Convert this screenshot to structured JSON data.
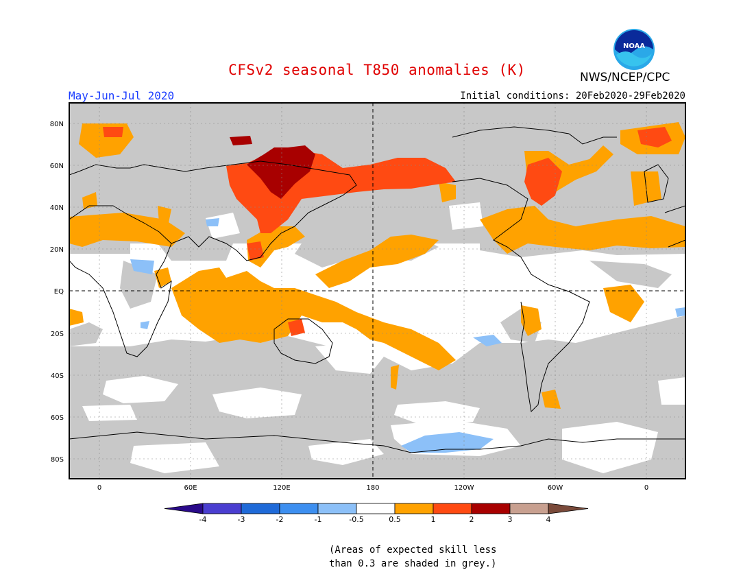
{
  "title": "CFSv2 seasonal T850 anomalies (K)",
  "season": "May-Jun-Jul 2020",
  "initial_conditions": "Initial conditions: 20Feb2020-29Feb2020",
  "agency": "NWS/NCEP/CPC",
  "logo_text": "NOAA",
  "lat_labels": [
    "80N",
    "60N",
    "40N",
    "20N",
    "EQ",
    "20S",
    "40S",
    "60S",
    "80S"
  ],
  "lon_labels": [
    "0",
    "60E",
    "120E",
    "180",
    "120W",
    "60W",
    "0"
  ],
  "colorbar": {
    "labels": [
      "-4",
      "-3",
      "-2",
      "-1",
      "-0.5",
      "0.5",
      "1",
      "2",
      "3",
      "4"
    ],
    "colors": [
      "#2a0a8a",
      "#4a3ed0",
      "#1f6ad8",
      "#3d8ff0",
      "#8cc0f8",
      "#ffffff",
      "#ffa200",
      "#ff4a12",
      "#a80000",
      "#c8a090",
      "#7a4a3a"
    ]
  },
  "note_line1": "(Areas of expected skill less",
  "note_line2": "than 0.3 are shaded in grey.)",
  "colors": {
    "grey": "#c8c8c8",
    "orange": "#ffa200",
    "red": "#ff4a12",
    "darkred": "#a80000",
    "lightblue": "#8cc0f8",
    "blue": "#3d8ff0"
  }
}
